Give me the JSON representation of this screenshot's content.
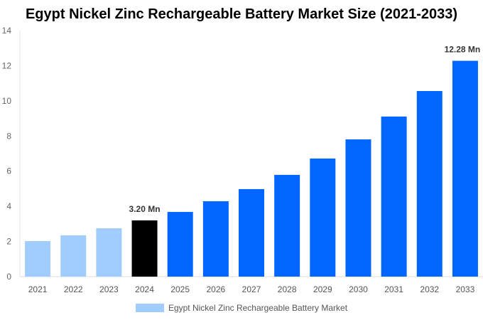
{
  "chart_data": {
    "type": "bar",
    "title": "Egypt Nickel Zinc Rechargeable Battery Market Size (2021-2033)",
    "categories": [
      "2021",
      "2022",
      "2023",
      "2024",
      "2025",
      "2026",
      "2027",
      "2028",
      "2029",
      "2030",
      "2031",
      "2032",
      "2033"
    ],
    "series": [
      {
        "name": "Egypt Nickel Zinc Rechargeable Battery Market",
        "values": [
          2.02,
          2.35,
          2.75,
          3.2,
          3.68,
          4.29,
          4.98,
          5.79,
          6.72,
          7.81,
          9.11,
          10.56,
          12.28
        ]
      }
    ],
    "ylim": [
      0,
      14
    ],
    "yticks": [
      0,
      2,
      4,
      6,
      8,
      10,
      12,
      14
    ],
    "grid": false,
    "legend": "bottom",
    "data_labels": [
      {
        "category": "2024",
        "text": "3.20 Mn"
      },
      {
        "category": "2033",
        "text": "12.28 Mn"
      }
    ],
    "colors": {
      "historical": "#a0cdfe",
      "base_year": "#000000",
      "forecast": "#0066ff"
    },
    "xlabel": "",
    "ylabel": ""
  }
}
